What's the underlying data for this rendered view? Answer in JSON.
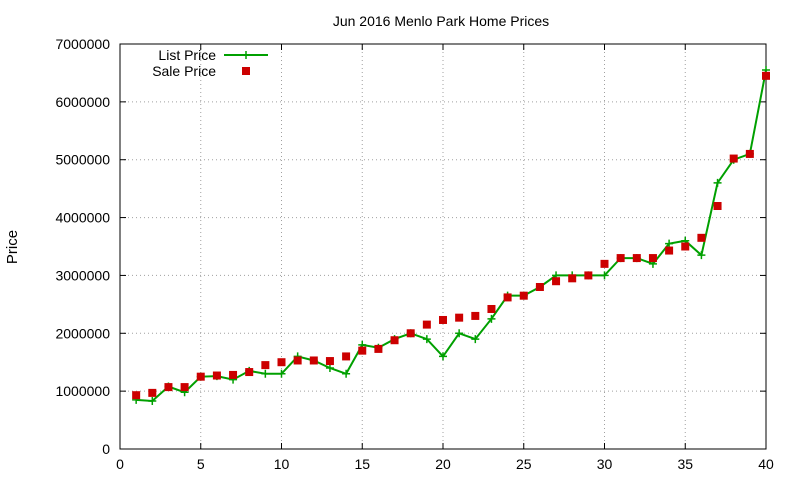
{
  "chart_data": {
    "type": "line",
    "title": "Jun 2016 Menlo Park Home Prices",
    "xlabel": "",
    "ylabel": "Price",
    "xlim": [
      0,
      40
    ],
    "ylim": [
      0,
      7000000
    ],
    "xticks": [
      0,
      5,
      10,
      15,
      20,
      25,
      30,
      35,
      40
    ],
    "yticks": [
      0,
      1000000,
      2000000,
      3000000,
      4000000,
      5000000,
      6000000,
      7000000
    ],
    "grid": true,
    "legend_position": "top-left",
    "series": [
      {
        "name": "List Price",
        "style": "line+cross",
        "color": "#00a000",
        "x": [
          1,
          2,
          3,
          4,
          5,
          6,
          7,
          8,
          9,
          10,
          11,
          12,
          13,
          14,
          15,
          16,
          17,
          18,
          19,
          20,
          21,
          22,
          23,
          24,
          25,
          26,
          27,
          28,
          29,
          30,
          31,
          32,
          33,
          34,
          35,
          36,
          37,
          38,
          39,
          40
        ],
        "values": [
          850000,
          830000,
          1080000,
          980000,
          1250000,
          1260000,
          1200000,
          1350000,
          1300000,
          1300000,
          1600000,
          1530000,
          1400000,
          1300000,
          1800000,
          1750000,
          1900000,
          2000000,
          1900000,
          1600000,
          2000000,
          1900000,
          2250000,
          2650000,
          2650000,
          2800000,
          3000000,
          3000000,
          3000000,
          3000000,
          3300000,
          3300000,
          3200000,
          3550000,
          3600000,
          3350000,
          4600000,
          5000000,
          5100000,
          6550000
        ]
      },
      {
        "name": "Sale Price",
        "style": "square",
        "color": "#cc0000",
        "x": [
          1,
          2,
          3,
          4,
          5,
          6,
          7,
          8,
          9,
          10,
          11,
          12,
          13,
          14,
          15,
          16,
          17,
          18,
          19,
          20,
          21,
          22,
          23,
          24,
          25,
          26,
          27,
          28,
          29,
          30,
          31,
          32,
          33,
          34,
          35,
          36,
          37,
          38,
          39,
          40
        ],
        "values": [
          930000,
          970000,
          1070000,
          1070000,
          1250000,
          1270000,
          1280000,
          1330000,
          1450000,
          1500000,
          1530000,
          1530000,
          1520000,
          1600000,
          1700000,
          1730000,
          1880000,
          2000000,
          2150000,
          2230000,
          2270000,
          2300000,
          2420000,
          2620000,
          2650000,
          2800000,
          2900000,
          2950000,
          3000000,
          3200000,
          3300000,
          3300000,
          3300000,
          3430000,
          3500000,
          3650000,
          4200000,
          5020000,
          5100000,
          6450000
        ]
      }
    ]
  }
}
